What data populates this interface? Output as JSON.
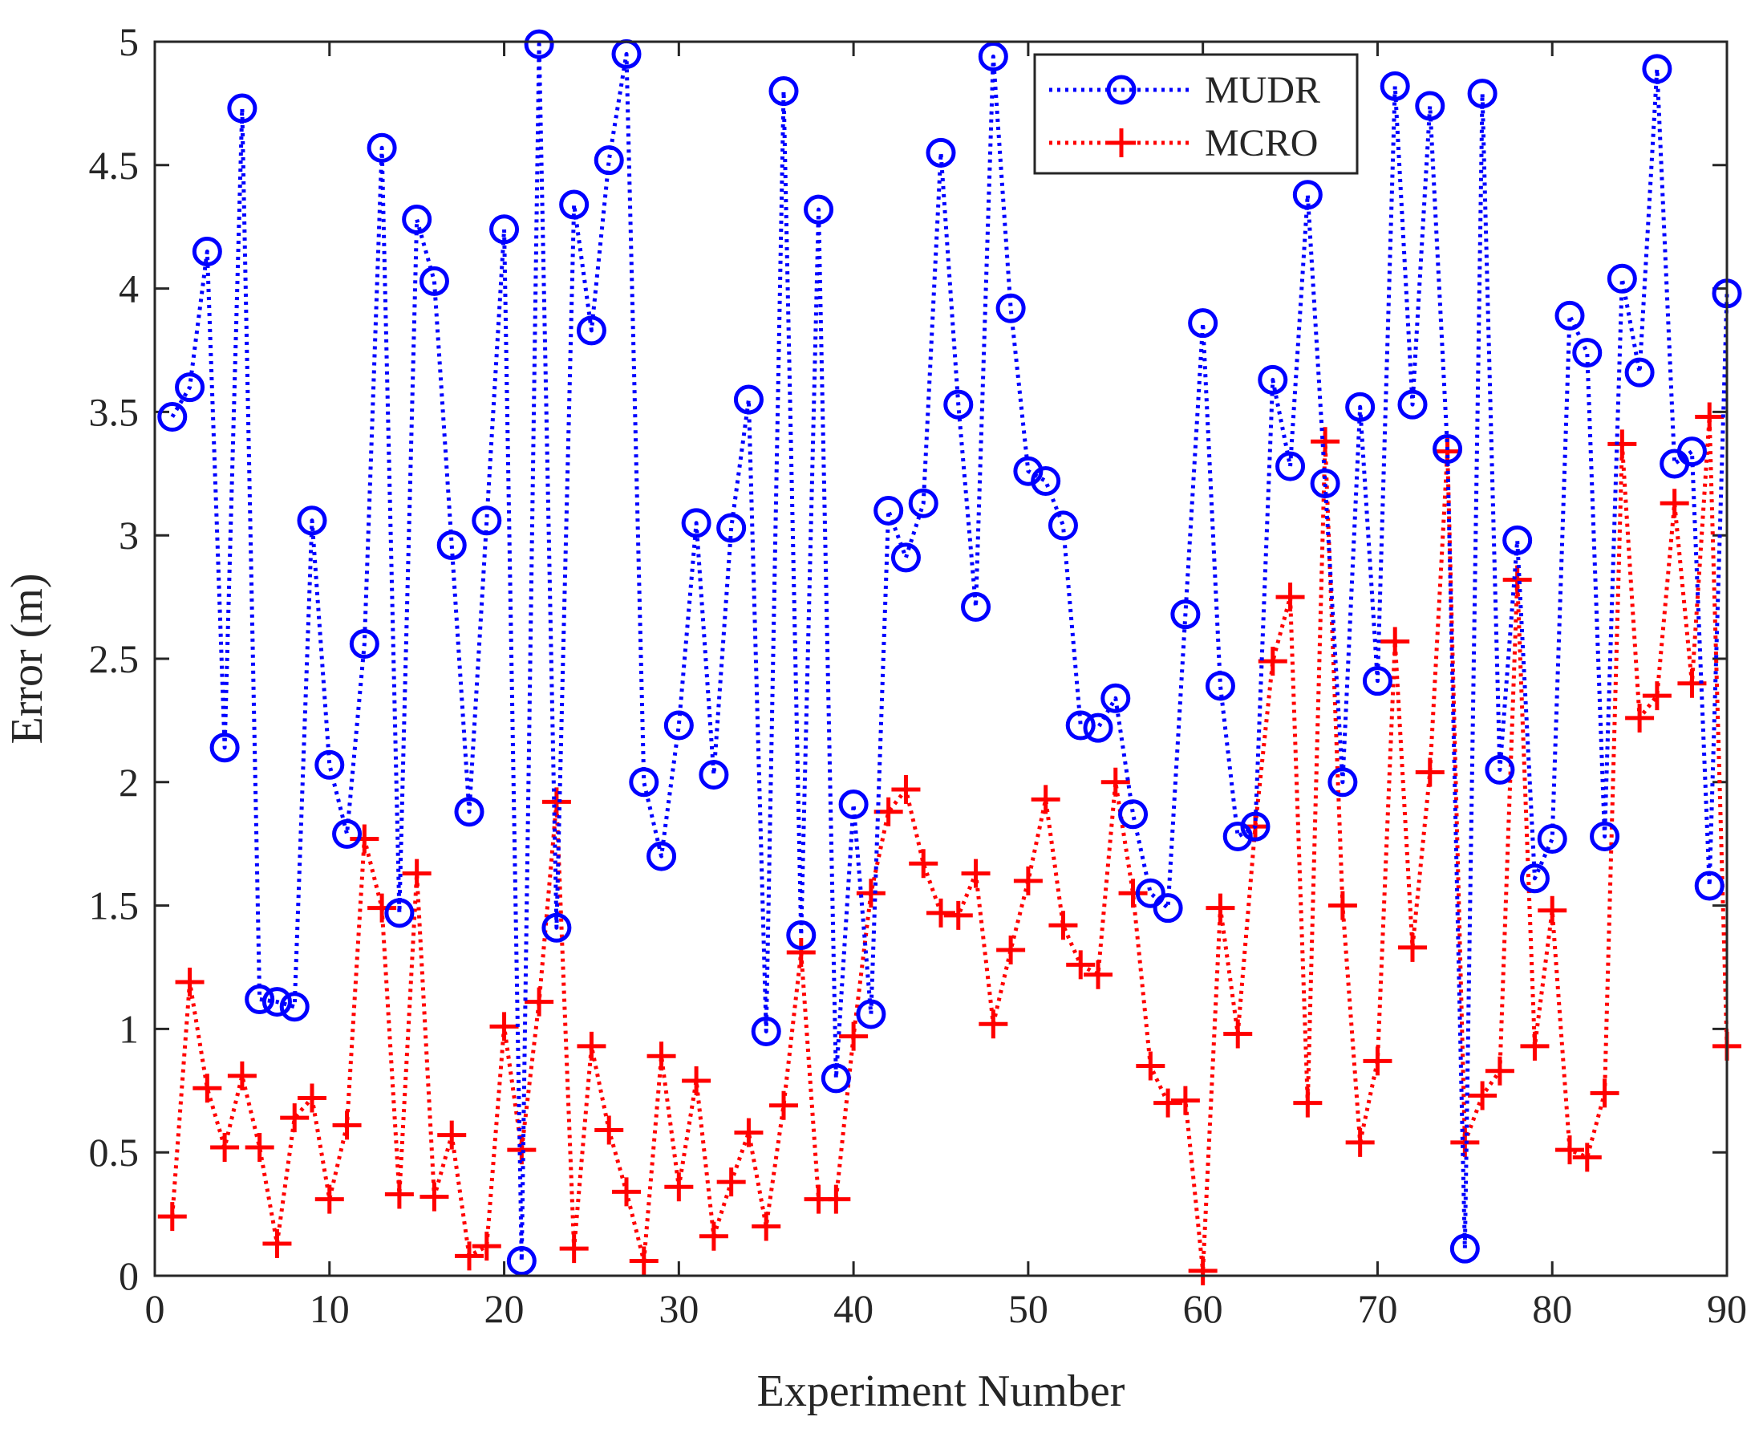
{
  "chart_data": {
    "type": "line",
    "title": "",
    "xlabel": "Experiment Number",
    "ylabel": "Error (m)",
    "xlim": [
      0,
      90
    ],
    "ylim": [
      0,
      5
    ],
    "xticks": [
      0,
      10,
      20,
      30,
      40,
      50,
      60,
      70,
      80,
      90
    ],
    "yticks": [
      0,
      0.5,
      1,
      1.5,
      2,
      2.5,
      3,
      3.5,
      4,
      4.5,
      5
    ],
    "xtick_labels": [
      "0",
      "10",
      "20",
      "30",
      "40",
      "50",
      "60",
      "70",
      "80",
      "90"
    ],
    "ytick_labels": [
      "0",
      "0.5",
      "1",
      "1.5",
      "2",
      "2.5",
      "3",
      "3.5",
      "4",
      "4.5",
      "5"
    ],
    "grid": false,
    "legend_position": "top-right",
    "x": [
      1,
      2,
      3,
      4,
      5,
      6,
      7,
      8,
      9,
      10,
      11,
      12,
      13,
      14,
      15,
      16,
      17,
      18,
      19,
      20,
      21,
      22,
      23,
      24,
      25,
      26,
      27,
      28,
      29,
      30,
      31,
      32,
      33,
      34,
      35,
      36,
      37,
      38,
      39,
      40,
      41,
      42,
      43,
      44,
      45,
      46,
      47,
      48,
      49,
      50,
      51,
      52,
      53,
      54,
      55,
      56,
      57,
      58,
      59,
      60,
      61,
      62,
      63,
      64,
      65,
      66,
      67,
      68,
      69,
      70,
      71,
      72,
      73,
      74,
      75,
      76,
      77,
      78,
      79,
      80,
      81,
      82,
      83,
      84,
      85,
      86,
      87,
      88,
      89,
      90
    ],
    "series": [
      {
        "name": "MUDR",
        "color": "#0000ff",
        "line_style": "dotted",
        "marker": "circle",
        "values": [
          3.48,
          3.6,
          4.15,
          2.14,
          4.73,
          1.12,
          1.11,
          1.09,
          3.06,
          2.07,
          1.79,
          2.56,
          4.57,
          1.47,
          4.28,
          4.03,
          2.96,
          1.88,
          3.06,
          4.24,
          0.06,
          4.99,
          1.41,
          4.34,
          3.83,
          4.52,
          4.95,
          2.0,
          1.7,
          2.23,
          3.05,
          2.03,
          3.03,
          3.55,
          0.99,
          4.8,
          1.38,
          4.32,
          0.8,
          1.91,
          1.06,
          3.1,
          2.91,
          3.13,
          4.55,
          3.53,
          2.71,
          4.94,
          3.92,
          3.26,
          3.22,
          3.04,
          2.23,
          2.22,
          2.34,
          1.87,
          1.55,
          1.49,
          2.68,
          3.86,
          2.39,
          1.78,
          1.82,
          3.63,
          3.28,
          4.38,
          3.21,
          2.0,
          3.52,
          2.41,
          4.82,
          3.53,
          4.74,
          3.35,
          0.11,
          4.79,
          2.05,
          2.98,
          1.61,
          1.77,
          3.89,
          3.74,
          1.78,
          4.04,
          3.66,
          4.89,
          3.29,
          3.34,
          1.58,
          3.98
        ]
      },
      {
        "name": "MCRO",
        "color": "#ff0000",
        "line_style": "dotted",
        "marker": "plus",
        "values": [
          0.24,
          1.19,
          0.76,
          0.52,
          0.81,
          0.52,
          0.13,
          0.64,
          0.72,
          0.31,
          0.61,
          1.77,
          1.49,
          0.33,
          1.63,
          0.32,
          0.57,
          0.08,
          0.12,
          1.01,
          0.51,
          1.11,
          1.92,
          0.11,
          0.93,
          0.59,
          0.34,
          0.06,
          0.89,
          0.36,
          0.79,
          0.16,
          0.38,
          0.58,
          0.2,
          0.69,
          1.31,
          0.31,
          0.31,
          0.97,
          1.55,
          1.88,
          1.97,
          1.67,
          1.47,
          1.46,
          1.63,
          1.02,
          1.32,
          1.6,
          1.93,
          1.42,
          1.26,
          1.22,
          2.0,
          1.55,
          0.85,
          0.7,
          0.71,
          0.02,
          1.49,
          0.98,
          1.82,
          2.49,
          2.75,
          0.7,
          3.38,
          1.5,
          0.54,
          0.87,
          2.57,
          1.33,
          2.04,
          3.34,
          0.54,
          0.73,
          0.83,
          2.82,
          0.93,
          1.48,
          0.51,
          0.48,
          0.74,
          3.37,
          2.26,
          2.35,
          3.13,
          2.4,
          3.48,
          0.93
        ]
      }
    ]
  }
}
